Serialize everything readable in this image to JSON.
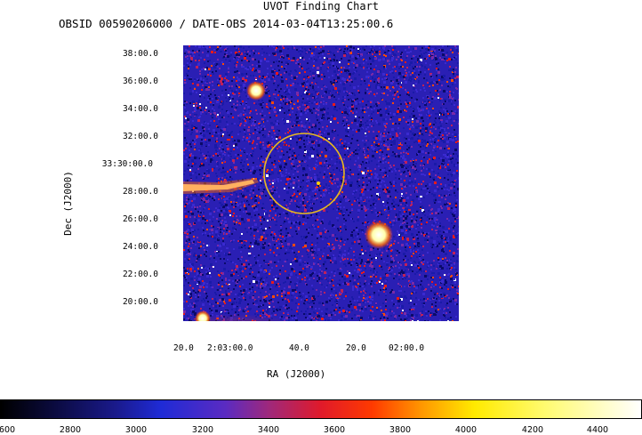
{
  "title": "UVOT Finding Chart",
  "subtitle": "OBSID 00590206000 / DATE-OBS 2014-03-04T13:25:00.6",
  "dec_ticks": [
    "38:00.0",
    "36:00.0",
    "34:00.0",
    "32:00.0",
    "33:30:00.0",
    "28:00.0",
    "26:00.0",
    "24:00.0",
    "22:00.0",
    "20:00.0"
  ],
  "ra_ticks": [
    "20.0",
    "2:03:00.0",
    "40.0",
    "20.0",
    "02:00.0"
  ],
  "xlabel": "RA (J2000)",
  "ylabel": "Dec (J2000)",
  "colorbar_ticks": [
    "600",
    "2800",
    "3000",
    "3200",
    "3400",
    "3600",
    "3800",
    "4000",
    "4200",
    "4400"
  ],
  "colors": {
    "background_noise": "#2a1fb4",
    "circle": "#e8b820"
  }
}
